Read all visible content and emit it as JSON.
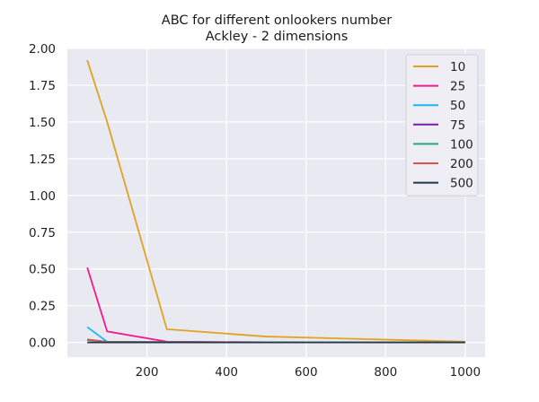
{
  "chart_data": {
    "type": "line",
    "title": "ABC for different onlookers number",
    "subtitle": "Ackley - 2 dimensions",
    "xlabel": "",
    "ylabel": "",
    "xlim": [
      0,
      1050
    ],
    "ylim": [
      -0.1,
      2.0
    ],
    "xticks": [
      200,
      400,
      600,
      800,
      1000
    ],
    "yticks": [
      0.0,
      0.25,
      0.5,
      0.75,
      1.0,
      1.25,
      1.5,
      1.75,
      2.0
    ],
    "xtick_labels": [
      "200",
      "400",
      "600",
      "800",
      "1000"
    ],
    "ytick_labels": [
      "0.00",
      "0.25",
      "0.50",
      "0.75",
      "1.00",
      "1.25",
      "1.50",
      "1.75",
      "2.00"
    ],
    "grid": true,
    "background": "#e9e9f1",
    "legend_position": "top-right",
    "x": [
      50,
      100,
      250,
      500,
      1000
    ],
    "series": [
      {
        "name": "10",
        "color": "#e0a31f",
        "values": [
          1.92,
          1.5,
          0.09,
          0.04,
          0.005
        ]
      },
      {
        "name": "25",
        "color": "#f5188c",
        "values": [
          0.51,
          0.075,
          0.005,
          0.001,
          0.0
        ]
      },
      {
        "name": "50",
        "color": "#19b8f0",
        "values": [
          0.105,
          0.005,
          0.002,
          0.001,
          0.0
        ]
      },
      {
        "name": "75",
        "color": "#7b1fa2",
        "values": [
          0.02,
          0.004,
          0.002,
          0.001,
          0.0
        ]
      },
      {
        "name": "100",
        "color": "#2aa87c",
        "values": [
          0.015,
          0.004,
          0.002,
          0.001,
          0.0
        ]
      },
      {
        "name": "200",
        "color": "#d9534f",
        "values": [
          0.02,
          0.003,
          0.001,
          0.0,
          0.0
        ]
      },
      {
        "name": "500",
        "color": "#1d3a4a",
        "values": [
          0.0,
          0.0,
          0.0,
          0.0,
          0.0
        ]
      }
    ]
  }
}
